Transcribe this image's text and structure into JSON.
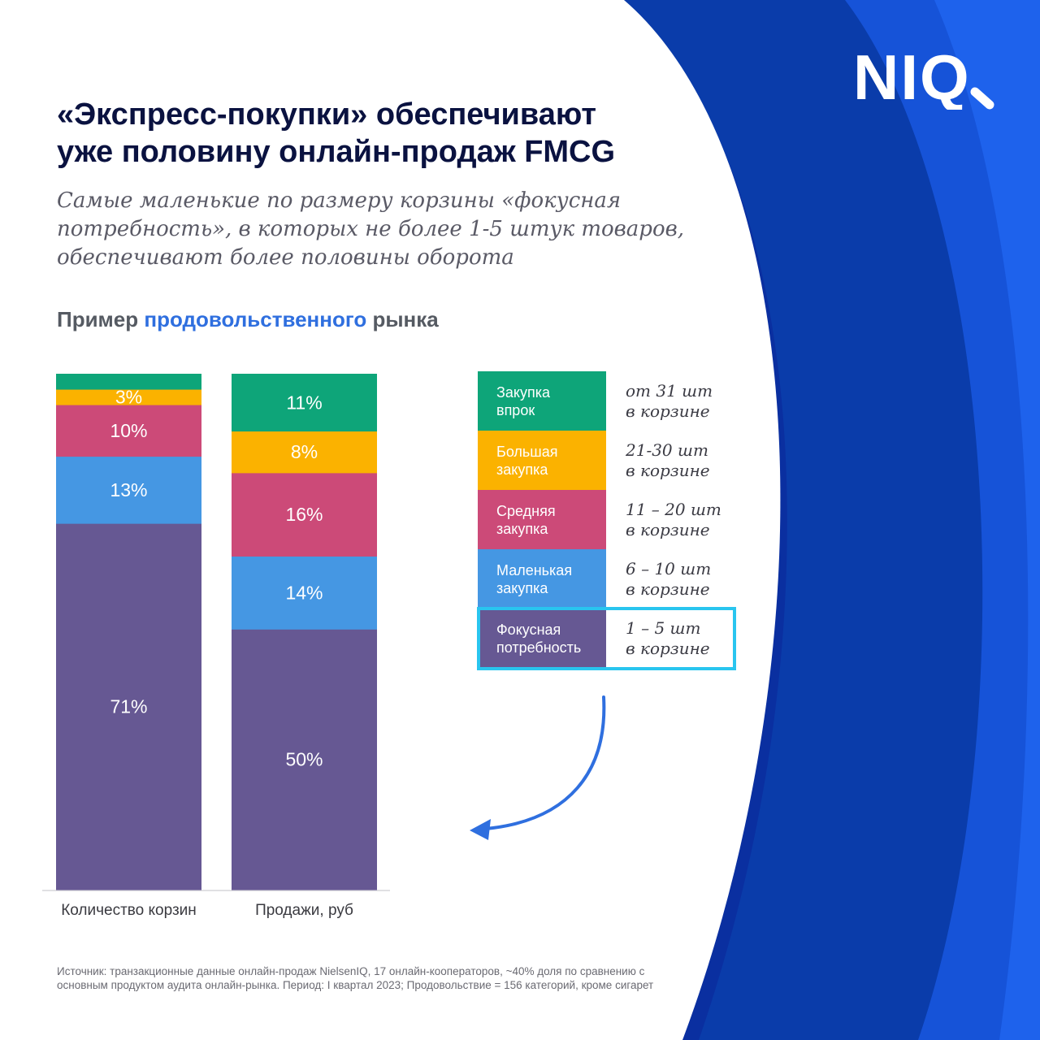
{
  "brand": {
    "logo_text": "NIQ",
    "colors": {
      "navy": "#0a3ca8",
      "blue": "#1f55e0",
      "white": "#ffffff"
    }
  },
  "title_lines": [
    "«Экспресс-покупки» обеспечивают",
    "уже половину онлайн-продаж FMCG"
  ],
  "subtitle_lines": [
    "Самые маленькие по размеру корзины «фокусная",
    "потребность», в которых не более 1-5 штук товаров,",
    "обеспечивают более половины оборота"
  ],
  "market_label": {
    "prefix": "Пример",
    "highlight": "продовольственного",
    "suffix": "рынка"
  },
  "chart_data": {
    "type": "bar",
    "stacked": true,
    "normalized_percent": true,
    "categories": [
      "Количество корзин",
      "Продажи, руб"
    ],
    "series": [
      {
        "name": "Фокусная потребность",
        "color": "#665893",
        "values": [
          71,
          50
        ],
        "labels": [
          "71%",
          "50%"
        ]
      },
      {
        "name": "Маленькая закупка",
        "color": "#4597e3",
        "values": [
          13,
          14
        ],
        "labels": [
          "13%",
          "14%"
        ]
      },
      {
        "name": "Средняя закупка",
        "color": "#cc4a78",
        "values": [
          10,
          16
        ],
        "labels": [
          "10%",
          "16%"
        ]
      },
      {
        "name": "Большая закупка",
        "color": "#fbb200",
        "values": [
          3,
          8
        ],
        "labels": [
          "3%",
          "8%"
        ]
      },
      {
        "name": "Закупка впрок",
        "color": "#0ea579",
        "values": [
          3,
          11
        ],
        "labels": [
          "",
          "11%"
        ]
      }
    ],
    "legend_placement": "right",
    "grid": false
  },
  "legend_items": [
    {
      "label": "Закупка\nвпрок",
      "desc": "от 31 шт\nв корзине",
      "color": "#0ea579"
    },
    {
      "label": "Большая\nзакупка",
      "desc": "21-30 шт\nв корзине",
      "color": "#fbb200"
    },
    {
      "label": "Средняя\nзакупка",
      "desc": "11 – 20 шт\nв корзине",
      "color": "#cc4a78"
    },
    {
      "label": "Маленькая\nзакупка",
      "desc": "6 – 10 шт\nв корзине",
      "color": "#4597e3"
    },
    {
      "label": "Фокусная\nпотребность",
      "desc": "1 – 5 шт\nв корзине",
      "color": "#665893"
    }
  ],
  "source": "Источник: транзакционные данные онлайн-продаж NielsenIQ, 17 онлайн-кооператоров, ~40% доля по сравнению с основным продуктом аудита онлайн-рынка. Период: I квартал 2023; Продовольствие = 156 категорий, кроме сигарет"
}
